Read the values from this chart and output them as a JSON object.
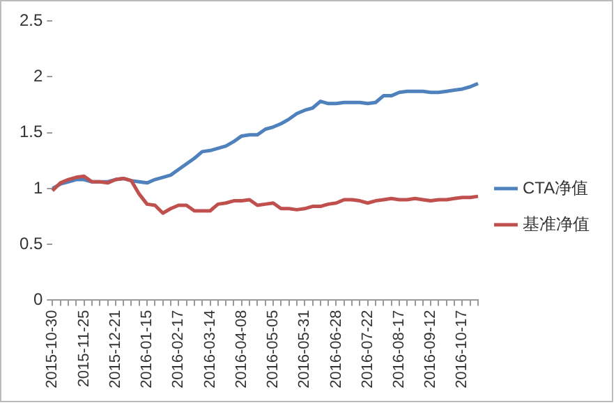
{
  "chart_data": {
    "type": "line",
    "categories": [
      "2015-10-30",
      null,
      null,
      null,
      "2015-11-25",
      null,
      null,
      null,
      "2015-12-21",
      null,
      null,
      null,
      "2016-01-15",
      null,
      null,
      null,
      "2016-02-17",
      null,
      null,
      null,
      "2016-03-14",
      null,
      null,
      null,
      "2016-04-08",
      null,
      null,
      null,
      "2016-05-05",
      null,
      null,
      null,
      "2016-05-31",
      null,
      null,
      null,
      "2016-06-28",
      null,
      null,
      null,
      "2016-07-22",
      null,
      null,
      null,
      "2016-08-17",
      null,
      null,
      null,
      "2016-09-12",
      null,
      null,
      null,
      "2016-10-17",
      null,
      null
    ],
    "series": [
      {
        "name": "CTA净值",
        "color": "#4f81bd",
        "values": [
          1.0,
          1.04,
          1.06,
          1.08,
          1.08,
          1.06,
          1.06,
          1.06,
          1.08,
          1.09,
          1.07,
          1.06,
          1.05,
          1.08,
          1.1,
          1.12,
          1.17,
          1.22,
          1.27,
          1.33,
          1.34,
          1.36,
          1.38,
          1.42,
          1.47,
          1.48,
          1.48,
          1.53,
          1.55,
          1.58,
          1.62,
          1.67,
          1.7,
          1.72,
          1.78,
          1.76,
          1.76,
          1.77,
          1.77,
          1.77,
          1.76,
          1.77,
          1.83,
          1.83,
          1.86,
          1.87,
          1.87,
          1.87,
          1.86,
          1.86,
          1.87,
          1.88,
          1.89,
          1.91,
          1.94
        ]
      },
      {
        "name": "基准净值",
        "color": "#c0504d",
        "values": [
          0.98,
          1.05,
          1.08,
          1.1,
          1.11,
          1.06,
          1.06,
          1.05,
          1.08,
          1.09,
          1.07,
          0.95,
          0.86,
          0.85,
          0.78,
          0.82,
          0.85,
          0.85,
          0.8,
          0.8,
          0.8,
          0.86,
          0.87,
          0.89,
          0.89,
          0.9,
          0.85,
          0.86,
          0.87,
          0.82,
          0.82,
          0.81,
          0.82,
          0.84,
          0.84,
          0.86,
          0.87,
          0.9,
          0.9,
          0.89,
          0.87,
          0.89,
          0.9,
          0.91,
          0.9,
          0.9,
          0.91,
          0.9,
          0.89,
          0.9,
          0.9,
          0.91,
          0.92,
          0.92,
          0.93
        ]
      }
    ],
    "ylim": [
      0,
      2.5
    ],
    "yticks": [
      0,
      0.5,
      1,
      1.5,
      2,
      2.5
    ],
    "grid": false,
    "legend": "right",
    "marker": "none",
    "line_style": "solid"
  }
}
